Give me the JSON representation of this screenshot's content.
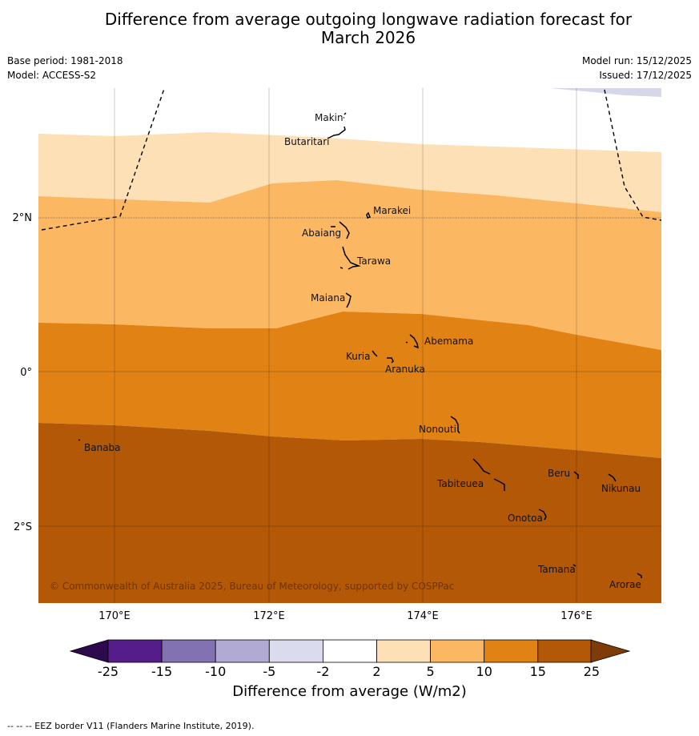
{
  "header": {
    "title_line1": "Difference from average outgoing longwave radiation forecast for",
    "title_line2": "March 2026",
    "base_period": "Base period: 1981-2018",
    "model": "Model: ACCESS-S2",
    "model_run": "Model run: 15/12/2025",
    "issued": "Issued: 17/12/2025"
  },
  "map": {
    "x_ticks": [
      "170°E",
      "172°E",
      "174°E",
      "176°E"
    ],
    "y_ticks": [
      "2°N",
      "0°",
      "2°S"
    ],
    "copyright": "© Commonwealth of Australia 2025, Bureau of Meteorology, supported by COSPPac",
    "places": [
      "Makin",
      "Butaritari",
      "Marakei",
      "Abaiang",
      "Tarawa",
      "Maiana",
      "Abemama",
      "Kuria",
      "Aranuka",
      "Nonouti",
      "Banaba",
      "Tabiteuea",
      "Beru",
      "Nikunau",
      "Onotoa",
      "Tamana",
      "Arorae"
    ]
  },
  "colorbar": {
    "title": "Difference from average (W/m2)",
    "tick_labels": [
      "-25",
      "-15",
      "-10",
      "-5",
      "-2",
      "2",
      "5",
      "10",
      "15",
      "25"
    ],
    "colors": [
      "#551d8a",
      "#8372b2",
      "#b1aad2",
      "#dadbec",
      "#ffffff",
      "#fee0b6",
      "#fbb762",
      "#e08214",
      "#b35806"
    ],
    "under_color": "#2d0a4e",
    "over_color": "#7f3b08"
  },
  "footer": "--  --  -- EEZ border V11 (Flanders Marine Institute, 2019)."
}
